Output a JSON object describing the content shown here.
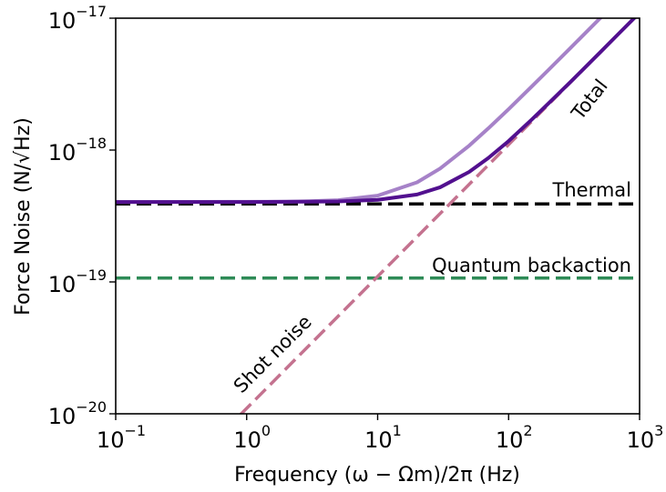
{
  "chart_data": {
    "type": "line",
    "xlabel": "Frequency (ω − Ωm)/2π (Hz)",
    "ylabel": "Force Noise (N/√Hz)",
    "xscale": "log",
    "yscale": "log",
    "xlim": [
      0.1,
      1000
    ],
    "ylim": [
      1e-20,
      1e-17
    ],
    "xticks": [
      {
        "value": 0.1,
        "label": "10",
        "exponent": "−1"
      },
      {
        "value": 1,
        "label": "10",
        "exponent": "0"
      },
      {
        "value": 10,
        "label": "10",
        "exponent": "1"
      },
      {
        "value": 100,
        "label": "10",
        "exponent": "2"
      },
      {
        "value": 1000,
        "label": "10",
        "exponent": "3"
      }
    ],
    "yticks": [
      {
        "value": 1e-20,
        "label": "10",
        "exponent": "−20"
      },
      {
        "value": 1e-19,
        "label": "10",
        "exponent": "−19"
      },
      {
        "value": 1e-18,
        "label": "10",
        "exponent": "−18"
      },
      {
        "value": 1e-17,
        "label": "10",
        "exponent": "−17"
      }
    ],
    "series": [
      {
        "name": "Thermal",
        "color": "#000000",
        "dashed": true,
        "x": [
          0.1,
          1000
        ],
        "values": [
          3.9e-19,
          3.9e-19
        ]
      },
      {
        "name": "Quantum backaction",
        "color": "#2e8b57",
        "dashed": true,
        "x": [
          0.1,
          1000
        ],
        "values": [
          1.07e-19,
          1.07e-19
        ]
      },
      {
        "name": "Shot noise",
        "color": "#c4728f",
        "dashed": true,
        "x": [
          0.9,
          1000
        ],
        "values": [
          9.9e-21,
          1.1e-17
        ]
      },
      {
        "color": "#a682c8",
        "dashed": false,
        "x": [
          0.1,
          1,
          2,
          3,
          5,
          10,
          20,
          30,
          50,
          70,
          100,
          150,
          200,
          300,
          500,
          700
        ],
        "values": [
          4.04e-19,
          4.05e-19,
          4.06e-19,
          4.09e-19,
          4.17e-19,
          4.51e-19,
          5.69e-19,
          7.24e-19,
          1.08e-18,
          1.46e-18,
          2.04e-18,
          3.03e-18,
          4.02e-18,
          6.01e-18,
          1e-17,
          1.4e-17
        ]
      },
      {
        "name": "Total",
        "color": "#52108f",
        "dashed": false,
        "x": [
          0.1,
          1,
          2,
          3,
          5,
          10,
          20,
          30,
          50,
          70,
          100,
          150,
          200,
          300,
          500,
          700,
          1000
        ],
        "values": [
          4.04e-19,
          4.04e-19,
          4.05e-19,
          4.06e-19,
          4.08e-19,
          4.19e-19,
          4.6e-19,
          5.22e-19,
          6.83e-19,
          8.7e-19,
          1.17e-18,
          1.7e-18,
          2.24e-18,
          3.32e-18,
          5.51e-18,
          7.71e-18,
          1.1e-17
        ]
      }
    ]
  }
}
